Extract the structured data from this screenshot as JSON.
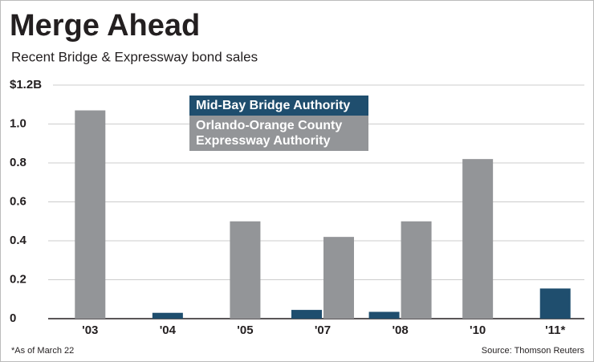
{
  "chart_data": {
    "type": "bar",
    "title": "Merge Ahead",
    "subtitle": "Recent Bridge & Expressway bond sales",
    "categories": [
      "'03",
      "'04",
      "'05",
      "'07",
      "'08",
      "'10",
      "'11*"
    ],
    "series": [
      {
        "name": "Mid-Bay Bridge Authority",
        "color": "#1f4e6e",
        "values": [
          null,
          0.03,
          null,
          0.045,
          0.035,
          null,
          0.155
        ]
      },
      {
        "name": "Orlando-Orange County Expressway Authority",
        "color": "#939598",
        "values": [
          1.07,
          null,
          0.5,
          0.42,
          0.5,
          0.82,
          null
        ]
      }
    ],
    "ylim": [
      0,
      1.2
    ],
    "yticks": [
      0,
      0.2,
      0.4,
      0.6,
      0.8,
      {
        "value": 1,
        "label": "1.0"
      },
      {
        "value": 1.2,
        "label": "$1.2B"
      }
    ],
    "grid": true,
    "note": "*As of March 22",
    "source": "Source: Thomson Reuters"
  }
}
